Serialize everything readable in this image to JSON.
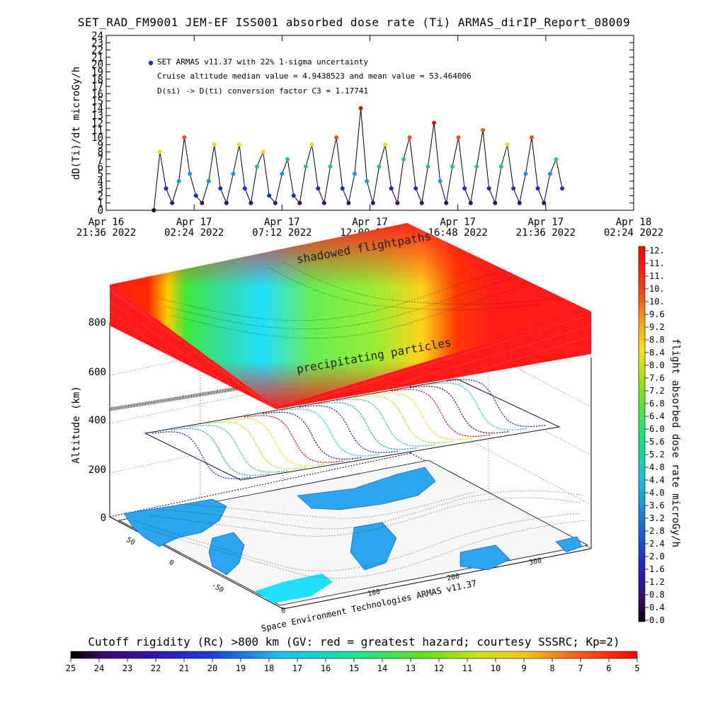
{
  "title": "SET_RAD_FM9001  JEM-EF ISS001 absorbed dose rate (Ti) ARMAS_dirIP_Report_08009",
  "top_panel": {
    "ylabel": "dD(Ti)/dt microGy/h",
    "annotations": [
      "SET ARMAS v11.37 with 22% 1-sigma uncertainty",
      "Cruise altitude median value = 4.9438523 and mean value = 53.464006",
      "D(si) -> D(ti) conversion factor C3 = 1.17741"
    ],
    "marker_colors": [
      "#1a2fbf",
      "#1b9ad1",
      "#1b7fd1",
      "#2ec27e",
      "#9be21b",
      "#f2d21b",
      "#e5561b",
      "#cc1111",
      "#3b0c6b",
      "#111111"
    ]
  },
  "bottom_panel": {
    "ylabel": "Altitude (km)",
    "colorbar_label": "flight absorbed dose rate microGy/h",
    "annotations": {
      "shadowed": "shadowed flightpaths",
      "precipitating": "precipitating particles"
    },
    "footer": "Space Environment Technologies ARMAS v11.37"
  },
  "rigidity_bar": {
    "label": "Cutoff rigidity (Rc) >800 km (GV: red = greatest hazard; courtesy SSSRC; Kp=2)"
  },
  "chart_data": [
    {
      "type": "line",
      "ylabel": "dD(Ti)/dt microGy/h",
      "y_ticks": [
        0,
        1,
        2,
        3,
        4,
        5,
        6,
        7,
        8,
        9,
        10,
        11,
        12,
        13,
        14,
        15,
        16,
        17,
        18,
        19,
        20,
        21,
        22,
        23,
        24
      ],
      "ylim": [
        0,
        24
      ],
      "x_ticks": [
        {
          "line1": "Apr 16",
          "line2": "21:36 2022"
        },
        {
          "line1": "Apr 17",
          "line2": "02:24 2022"
        },
        {
          "line1": "Apr 17",
          "line2": "07:12 2022"
        },
        {
          "line1": "Apr 17",
          "line2": "12:00 2022"
        },
        {
          "line1": "Apr 17",
          "line2": "16:48 2022"
        },
        {
          "line1": "Apr 17",
          "line2": "21:36 2022"
        },
        {
          "line1": "Apr 18",
          "line2": "02:24 2022"
        }
      ],
      "xlim": [
        "2022-04-16 21:36",
        "2022-04-18 02:24"
      ],
      "series": [
        {
          "values": [
            [
              "2022-04-17 00:12",
              0
            ],
            [
              "2022-04-17 00:32",
              8
            ],
            [
              "2022-04-17 00:52",
              3
            ],
            [
              "2022-04-17 01:12",
              1
            ],
            [
              "2022-04-17 01:34",
              4
            ],
            [
              "2022-04-17 01:52",
              10
            ],
            [
              "2022-04-17 02:10",
              5
            ],
            [
              "2022-04-17 02:30",
              2
            ],
            [
              "2022-04-17 02:50",
              1
            ],
            [
              "2022-04-17 03:12",
              4
            ],
            [
              "2022-04-17 03:30",
              9
            ],
            [
              "2022-04-17 03:50",
              3
            ],
            [
              "2022-04-17 04:10",
              1
            ],
            [
              "2022-04-17 04:32",
              5
            ],
            [
              "2022-04-17 04:52",
              9
            ],
            [
              "2022-04-17 05:10",
              3
            ],
            [
              "2022-04-17 05:30",
              1
            ],
            [
              "2022-04-17 05:50",
              6
            ],
            [
              "2022-04-17 06:10",
              8
            ],
            [
              "2022-04-17 06:30",
              2
            ],
            [
              "2022-04-17 06:50",
              1
            ],
            [
              "2022-04-17 07:12",
              5
            ],
            [
              "2022-04-17 07:30",
              7
            ],
            [
              "2022-04-17 07:50",
              2
            ],
            [
              "2022-04-17 08:10",
              1
            ],
            [
              "2022-04-17 08:30",
              6
            ],
            [
              "2022-04-17 08:50",
              9
            ],
            [
              "2022-04-17 09:10",
              3
            ],
            [
              "2022-04-17 09:30",
              1
            ],
            [
              "2022-04-17 09:50",
              6
            ],
            [
              "2022-04-17 10:10",
              10
            ],
            [
              "2022-04-17 10:30",
              3
            ],
            [
              "2022-04-17 10:50",
              1
            ],
            [
              "2022-04-17 11:10",
              5
            ],
            [
              "2022-04-17 11:30",
              14
            ],
            [
              "2022-04-17 11:50",
              4
            ],
            [
              "2022-04-17 12:10",
              1
            ],
            [
              "2022-04-17 12:30",
              6
            ],
            [
              "2022-04-17 12:50",
              9
            ],
            [
              "2022-04-17 13:10",
              3
            ],
            [
              "2022-04-17 13:30",
              1
            ],
            [
              "2022-04-17 13:50",
              7
            ],
            [
              "2022-04-17 14:10",
              10
            ],
            [
              "2022-04-17 14:30",
              3
            ],
            [
              "2022-04-17 14:50",
              1
            ],
            [
              "2022-04-17 15:10",
              6
            ],
            [
              "2022-04-17 15:30",
              12
            ],
            [
              "2022-04-17 15:50",
              4
            ],
            [
              "2022-04-17 16:10",
              1
            ],
            [
              "2022-04-17 16:30",
              6
            ],
            [
              "2022-04-17 16:50",
              10
            ],
            [
              "2022-04-17 17:10",
              3
            ],
            [
              "2022-04-17 17:30",
              1
            ],
            [
              "2022-04-17 17:50",
              6
            ],
            [
              "2022-04-17 18:10",
              11
            ],
            [
              "2022-04-17 18:30",
              3
            ],
            [
              "2022-04-17 18:50",
              1
            ],
            [
              "2022-04-17 19:10",
              6
            ],
            [
              "2022-04-17 19:30",
              9
            ],
            [
              "2022-04-17 19:50",
              3
            ],
            [
              "2022-04-17 20:10",
              1
            ],
            [
              "2022-04-17 20:30",
              5
            ],
            [
              "2022-04-17 20:50",
              10
            ],
            [
              "2022-04-17 21:10",
              3
            ],
            [
              "2022-04-17 21:30",
              1
            ],
            [
              "2022-04-17 21:50",
              5
            ],
            [
              "2022-04-17 22:10",
              7
            ],
            [
              "2022-04-17 22:30",
              3
            ]
          ]
        }
      ]
    },
    {
      "type": "heatmap",
      "ylabel": "Altitude (km)",
      "y_ticks": [
        0,
        200,
        400,
        600,
        800
      ],
      "colorbar": {
        "label": "flight absorbed dose rate microGy/h",
        "ticks": [
          "12.",
          "11.",
          "11.",
          "10.",
          "10.",
          "9.6",
          "9.2",
          "8.8",
          "8.4",
          "8.0",
          "7.6",
          "7.2",
          "6.8",
          "6.4",
          "6.0",
          "5.6",
          "5.2",
          "4.8",
          "4.4",
          "4.0",
          "3.6",
          "3.2",
          "2.8",
          "2.4",
          "2.0",
          "1.6",
          "1.2",
          "0.8",
          "0.4",
          "0.0"
        ],
        "range": [
          0,
          12
        ]
      },
      "lat_ticks": [
        "50",
        "0",
        "-50"
      ],
      "lon_ticks": [
        "0",
        "100",
        "200",
        "300"
      ]
    },
    {
      "type": "bar",
      "label": "Cutoff rigidity (Rc) >800 km (GV: red = greatest hazard; courtesy SSSRC; Kp=2)",
      "ticks": [
        "25",
        "24",
        "23",
        "22",
        "21",
        "20",
        "19",
        "18",
        "17",
        "16",
        "15",
        "14",
        "13",
        "12",
        "11",
        "10",
        "9",
        "8",
        "7",
        "6",
        "5"
      ],
      "range": [
        25,
        5
      ]
    }
  ]
}
